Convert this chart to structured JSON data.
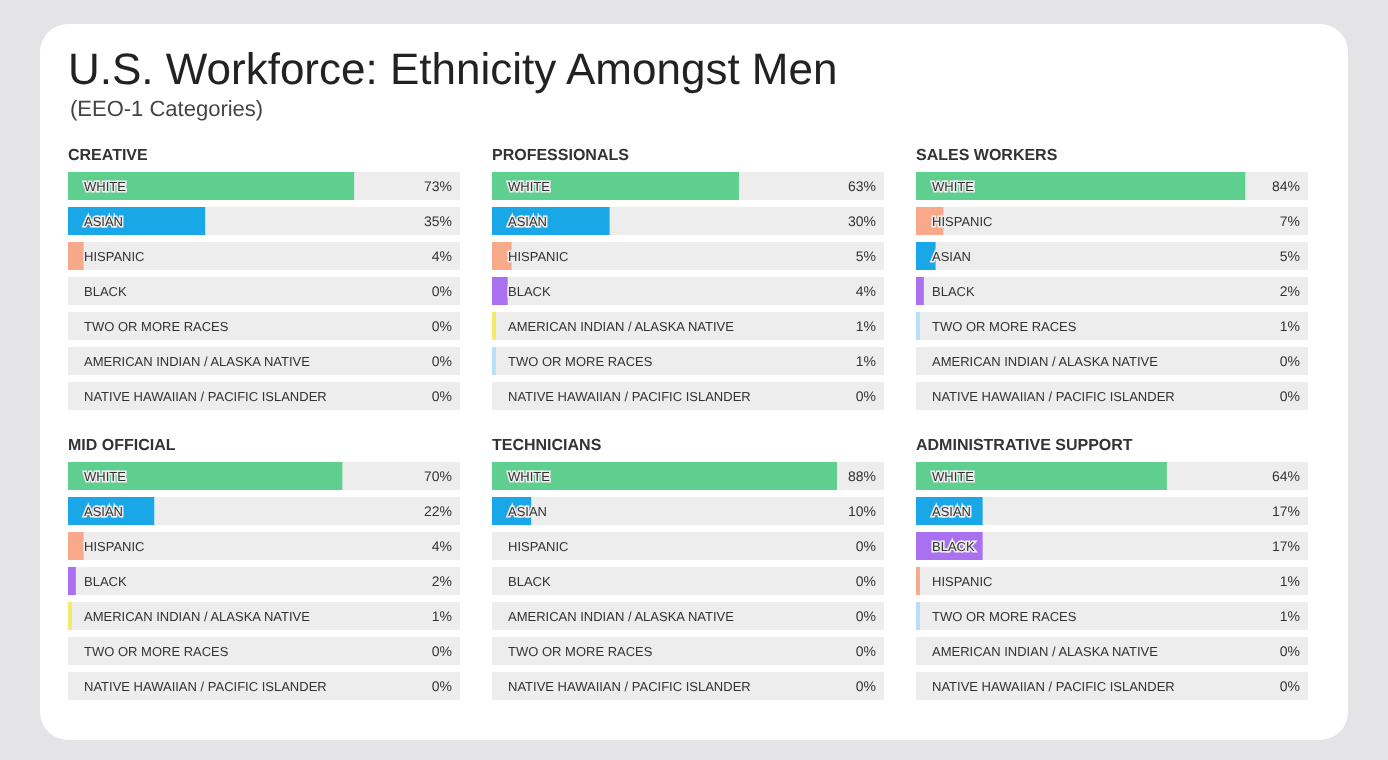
{
  "chart_data": [
    {
      "type": "other",
      "title": "U.S. Workforce: Ethnicity Amongst Men",
      "subtitle": "(EEO-1 Categories)"
    },
    {
      "type": "bar",
      "orientation": "horizontal",
      "title": "CREATIVE",
      "categories": [
        "WHITE",
        "ASIAN",
        "HISPANIC",
        "BLACK",
        "TWO OR MORE RACES",
        "AMERICAN INDIAN / ALASKA NATIVE",
        "NATIVE HAWAIIAN / PACIFIC ISLANDER"
      ],
      "values": [
        73,
        35,
        4,
        0,
        0,
        0,
        0
      ],
      "colors": [
        "#5fcf8f",
        "#1aa7e8",
        "#f7a98a",
        "#a970f0",
        "#b8e0f7",
        "#f5e96a",
        "#d9d9d9"
      ],
      "value_labels": [
        "73%",
        "35%",
        "4%",
        "0%",
        "0%",
        "0%",
        "0%"
      ],
      "xlim": [
        0,
        100
      ]
    },
    {
      "type": "bar",
      "orientation": "horizontal",
      "title": "PROFESSIONALS",
      "categories": [
        "WHITE",
        "ASIAN",
        "HISPANIC",
        "BLACK",
        "AMERICAN INDIAN / ALASKA NATIVE",
        "TWO OR MORE RACES",
        "NATIVE HAWAIIAN / PACIFIC ISLANDER"
      ],
      "values": [
        63,
        30,
        5,
        4,
        1,
        1,
        0
      ],
      "colors": [
        "#5fcf8f",
        "#1aa7e8",
        "#f7a98a",
        "#a970f0",
        "#f5e96a",
        "#b8e0f7",
        "#d9d9d9"
      ],
      "value_labels": [
        "63%",
        "30%",
        "5%",
        "4%",
        "1%",
        "1%",
        "0%"
      ],
      "xlim": [
        0,
        100
      ]
    },
    {
      "type": "bar",
      "orientation": "horizontal",
      "title": "SALES WORKERS",
      "categories": [
        "WHITE",
        "HISPANIC",
        "ASIAN",
        "BLACK",
        "TWO OR MORE RACES",
        "AMERICAN INDIAN / ALASKA NATIVE",
        "NATIVE HAWAIIAN / PACIFIC ISLANDER"
      ],
      "values": [
        84,
        7,
        5,
        2,
        1,
        0,
        0
      ],
      "colors": [
        "#5fcf8f",
        "#f7a98a",
        "#1aa7e8",
        "#a970f0",
        "#b8e0f7",
        "#f5e96a",
        "#d9d9d9"
      ],
      "value_labels": [
        "84%",
        "7%",
        "5%",
        "2%",
        "1%",
        "0%",
        "0%"
      ],
      "xlim": [
        0,
        100
      ]
    },
    {
      "type": "bar",
      "orientation": "horizontal",
      "title": "MID OFFICIAL",
      "categories": [
        "WHITE",
        "ASIAN",
        "HISPANIC",
        "BLACK",
        "AMERICAN INDIAN / ALASKA NATIVE",
        "TWO OR MORE RACES",
        "NATIVE HAWAIIAN / PACIFIC ISLANDER"
      ],
      "values": [
        70,
        22,
        4,
        2,
        1,
        0,
        0
      ],
      "colors": [
        "#5fcf8f",
        "#1aa7e8",
        "#f7a98a",
        "#a970f0",
        "#f5e96a",
        "#b8e0f7",
        "#d9d9d9"
      ],
      "value_labels": [
        "70%",
        "22%",
        "4%",
        "2%",
        "1%",
        "0%",
        "0%"
      ],
      "xlim": [
        0,
        100
      ]
    },
    {
      "type": "bar",
      "orientation": "horizontal",
      "title": "TECHNICIANS",
      "categories": [
        "WHITE",
        "ASIAN",
        "HISPANIC",
        "BLACK",
        "AMERICAN INDIAN / ALASKA NATIVE",
        "TWO OR MORE RACES",
        "NATIVE HAWAIIAN / PACIFIC ISLANDER"
      ],
      "values": [
        88,
        10,
        0,
        0,
        0,
        0,
        0
      ],
      "colors": [
        "#5fcf8f",
        "#1aa7e8",
        "#f7a98a",
        "#a970f0",
        "#f5e96a",
        "#b8e0f7",
        "#d9d9d9"
      ],
      "value_labels": [
        "88%",
        "10%",
        "0%",
        "0%",
        "0%",
        "0%",
        "0%"
      ],
      "xlim": [
        0,
        100
      ]
    },
    {
      "type": "bar",
      "orientation": "horizontal",
      "title": "ADMINISTRATIVE SUPPORT",
      "categories": [
        "WHITE",
        "ASIAN",
        "BLACK",
        "HISPANIC",
        "TWO OR MORE RACES",
        "AMERICAN INDIAN / ALASKA NATIVE",
        "NATIVE HAWAIIAN / PACIFIC ISLANDER"
      ],
      "values": [
        64,
        17,
        17,
        1,
        1,
        0,
        0
      ],
      "colors": [
        "#5fcf8f",
        "#1aa7e8",
        "#a970f0",
        "#f7a98a",
        "#b8e0f7",
        "#f5e96a",
        "#d9d9d9"
      ],
      "value_labels": [
        "64%",
        "17%",
        "17%",
        "1%",
        "1%",
        "0%",
        "0%"
      ],
      "xlim": [
        0,
        100
      ]
    }
  ]
}
